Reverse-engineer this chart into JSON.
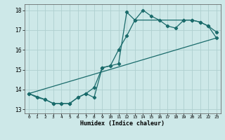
{
  "xlabel": "Humidex (Indice chaleur)",
  "background_color": "#cde8e8",
  "grid_color": "#afd0d0",
  "line_color": "#1a6b6b",
  "xlim": [
    -0.5,
    23.5
  ],
  "ylim": [
    12.8,
    18.3
  ],
  "yticks": [
    13,
    14,
    15,
    16,
    17,
    18
  ],
  "xtick_labels": [
    "0",
    "1",
    "2",
    "3",
    "4",
    "5",
    "6",
    "7",
    "8",
    "9",
    "10",
    "11",
    "12",
    "13",
    "14",
    "15",
    "16",
    "17",
    "18",
    "19",
    "20",
    "21",
    "22",
    "23"
  ],
  "line1_x": [
    0,
    1,
    2,
    3,
    4,
    5,
    6,
    7,
    8,
    9,
    10,
    11,
    12,
    13,
    14,
    15,
    16,
    17,
    18,
    19,
    20,
    21,
    22,
    23
  ],
  "line1_y": [
    13.8,
    13.6,
    13.5,
    13.3,
    13.3,
    13.3,
    13.6,
    13.8,
    14.1,
    15.1,
    15.2,
    16.0,
    16.7,
    17.5,
    18.0,
    17.7,
    17.5,
    17.2,
    17.1,
    17.5,
    17.5,
    17.4,
    17.2,
    16.9
  ],
  "line2_x": [
    0,
    2,
    3,
    4,
    5,
    6,
    7,
    8,
    9,
    10,
    11,
    12,
    13,
    19,
    20,
    21,
    22,
    23
  ],
  "line2_y": [
    13.8,
    13.5,
    13.3,
    13.3,
    13.3,
    13.6,
    13.8,
    13.6,
    15.1,
    15.2,
    15.3,
    17.9,
    17.5,
    17.5,
    17.5,
    17.4,
    17.2,
    16.6
  ],
  "line3_x": [
    0,
    23
  ],
  "line3_y": [
    13.8,
    16.6
  ],
  "marker": "D",
  "marker_size": 2.2,
  "linewidth": 0.9
}
